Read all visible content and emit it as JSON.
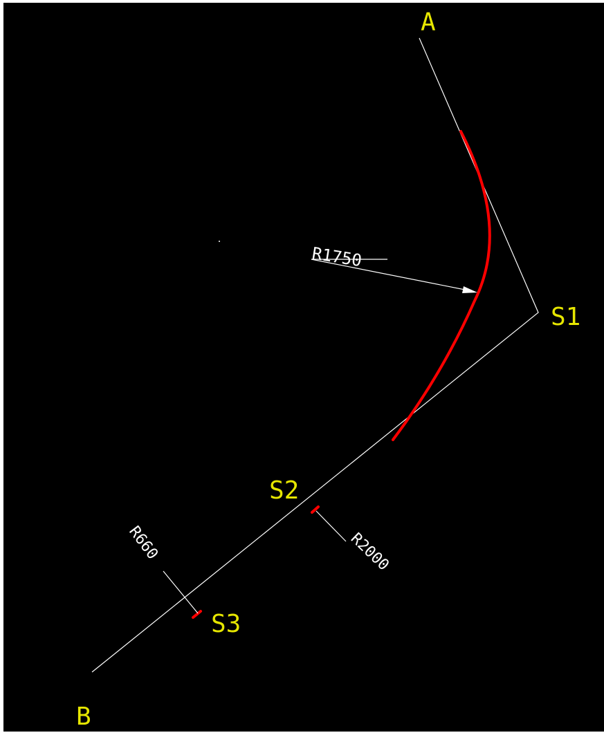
{
  "drawing": {
    "background_color": "#000000",
    "line_color": "#ffffff",
    "curve_color": "#ff0000",
    "label_color": "#e6e600"
  },
  "points": {
    "a": "A",
    "b": "B",
    "s1": "S1",
    "s2": "S2",
    "s3": "S3"
  },
  "radii": {
    "r1": "R1750",
    "r2": "R2000",
    "r3": "R660"
  }
}
